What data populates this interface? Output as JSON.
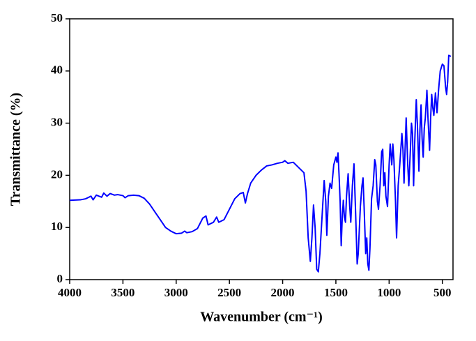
{
  "chart_data": {
    "type": "line",
    "x_label": "Wavenumber (cm⁻¹)",
    "y_label": "Transmittance (%)",
    "xlim": [
      4000,
      400
    ],
    "xticks": [
      4000,
      3500,
      3000,
      2500,
      2000,
      1500,
      1000,
      500
    ],
    "ylim": [
      0,
      50
    ],
    "yticks": [
      0,
      10,
      20,
      30,
      40,
      50
    ],
    "series": [
      {
        "color": "#0000ff",
        "x": [
          4000,
          3900,
          3850,
          3800,
          3780,
          3750,
          3700,
          3680,
          3650,
          3620,
          3580,
          3550,
          3500,
          3480,
          3450,
          3400,
          3350,
          3300,
          3250,
          3200,
          3150,
          3100,
          3050,
          3000,
          2950,
          2920,
          2900,
          2850,
          2800,
          2750,
          2720,
          2700,
          2650,
          2620,
          2600,
          2550,
          2500,
          2450,
          2400,
          2370,
          2350,
          2330,
          2300,
          2250,
          2200,
          2150,
          2100,
          2050,
          2000,
          1980,
          1950,
          1900,
          1850,
          1800,
          1780,
          1760,
          1740,
          1725,
          1710,
          1695,
          1680,
          1665,
          1650,
          1630,
          1610,
          1595,
          1585,
          1570,
          1555,
          1540,
          1520,
          1500,
          1490,
          1480,
          1470,
          1460,
          1450,
          1440,
          1430,
          1420,
          1410,
          1400,
          1385,
          1370,
          1360,
          1345,
          1330,
          1315,
          1300,
          1290,
          1270,
          1255,
          1245,
          1235,
          1220,
          1210,
          1200,
          1190,
          1180,
          1165,
          1150,
          1135,
          1125,
          1110,
          1100,
          1085,
          1070,
          1060,
          1050,
          1040,
          1030,
          1015,
          1000,
          990,
          975,
          965,
          955,
          940,
          930,
          915,
          900,
          880,
          870,
          860,
          850,
          840,
          825,
          815,
          800,
          790,
          780,
          770,
          760,
          745,
          735,
          720,
          710,
          700,
          690,
          680,
          670,
          660,
          645,
          635,
          620,
          610,
          600,
          590,
          580,
          565,
          550,
          535,
          520,
          500,
          485,
          470,
          460,
          450,
          440,
          420
        ],
        "values": [
          15.2,
          15.3,
          15.5,
          16.0,
          15.3,
          16.2,
          15.8,
          16.6,
          16.0,
          16.5,
          16.2,
          16.3,
          16.1,
          15.7,
          16.1,
          16.2,
          16.1,
          15.6,
          14.5,
          13.0,
          11.5,
          10.0,
          9.3,
          8.8,
          8.9,
          9.3,
          9.0,
          9.2,
          9.8,
          11.8,
          12.2,
          10.5,
          11.0,
          12.0,
          11.0,
          11.5,
          13.5,
          15.5,
          16.5,
          16.7,
          14.7,
          16.5,
          18.5,
          20.0,
          21.0,
          21.8,
          22.0,
          22.3,
          22.5,
          22.8,
          22.3,
          22.5,
          21.5,
          20.5,
          17,
          8,
          3.5,
          8,
          14.3,
          10,
          2,
          1.5,
          5,
          12,
          19,
          15,
          8.5,
          16,
          18.5,
          17.5,
          22,
          23.5,
          22.5,
          24.3,
          20,
          15,
          6.5,
          12,
          15.2,
          12,
          11,
          16,
          20.3,
          14,
          11,
          18,
          22.2,
          13,
          3,
          5,
          14,
          18,
          19.5,
          14,
          5,
          8,
          3,
          1.8,
          6,
          15.5,
          18,
          23,
          22,
          15,
          13.5,
          18,
          24.5,
          25,
          18,
          20.5,
          16,
          14,
          22,
          26,
          22,
          26,
          23,
          15,
          8,
          18,
          22,
          28,
          25,
          18.5,
          25,
          31,
          22,
          18,
          25,
          30,
          28,
          18,
          26,
          34.5,
          30,
          20.8,
          29,
          33.5,
          27,
          23.5,
          29,
          31,
          36.3,
          31,
          24.8,
          31,
          35.5,
          33,
          31.5,
          35.8,
          32,
          36.5,
          40,
          41.3,
          41,
          37,
          35.5,
          38,
          43,
          42.8
        ]
      }
    ]
  }
}
